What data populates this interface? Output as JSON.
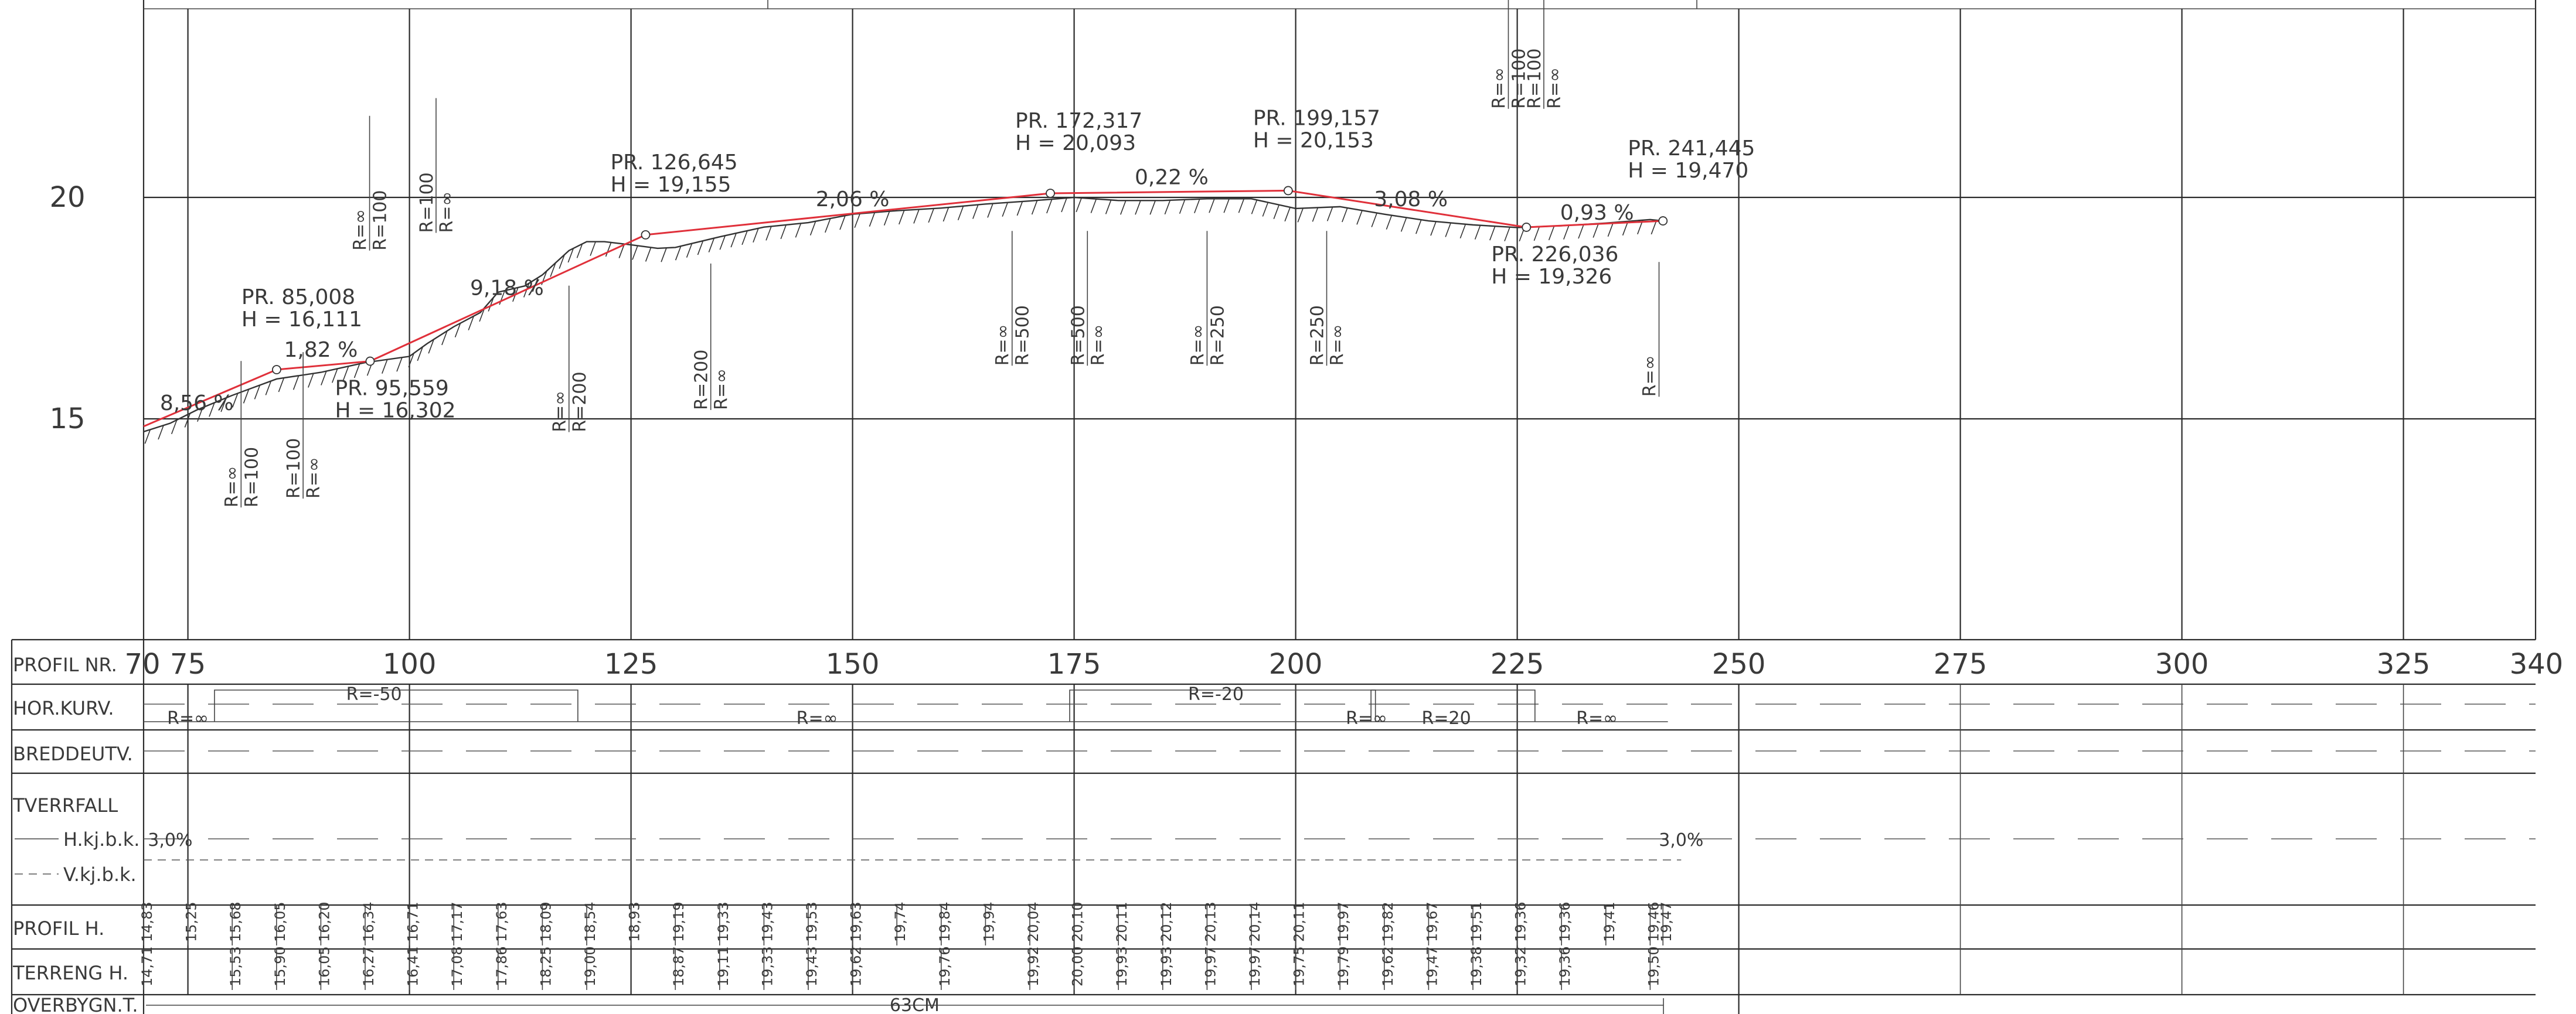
{
  "row_labels": {
    "profil_nr": "PROFIL NR.",
    "hor_kurv": "HOR.KURV.",
    "breddeutv": "BREDDEUTV.",
    "tverrfall": "TVERRFALL",
    "hkjbk": "H.kj.b.k.",
    "vkjbk": "V.kj.b.k.",
    "profil_h": "PROFIL H.",
    "terreng_h": "TERRENG H.",
    "overbygn": "OVERBYGN.T."
  },
  "y_ticks": [
    {
      "label": "20",
      "value": 20
    },
    {
      "label": "15",
      "value": 15
    }
  ],
  "x_ticks": [
    {
      "label": "70",
      "value": 70
    },
    {
      "label": "75",
      "value": 75
    },
    {
      "label": "100",
      "value": 100
    },
    {
      "label": "125",
      "value": 125
    },
    {
      "label": "150",
      "value": 150
    },
    {
      "label": "175",
      "value": 175
    },
    {
      "label": "200",
      "value": 200
    },
    {
      "label": "225",
      "value": 225
    },
    {
      "label": "250",
      "value": 250
    },
    {
      "label": "275",
      "value": 275
    },
    {
      "label": "300",
      "value": 300
    },
    {
      "label": "325",
      "value": 325
    },
    {
      "label": "340",
      "value": 340
    }
  ],
  "vertical_points": [
    {
      "station": 85.008,
      "height": 16.111,
      "pr": "PR. 85,008",
      "h": "H = 16,111",
      "side": "above"
    },
    {
      "station": 95.559,
      "height": 16.302,
      "pr": "PR. 95,559",
      "h": "H = 16,302",
      "side": "below"
    },
    {
      "station": 126.645,
      "height": 19.155,
      "pr": "PR. 126,645",
      "h": "H = 19,155",
      "side": "above"
    },
    {
      "station": 172.317,
      "height": 20.093,
      "pr": "PR. 172,317",
      "h": "H = 20,093",
      "side": "above"
    },
    {
      "station": 199.157,
      "height": 20.153,
      "pr": "PR. 199,157",
      "h": "H = 20,153",
      "side": "above"
    },
    {
      "station": 226.036,
      "height": 19.326,
      "pr": "PR. 226,036",
      "h": "H = 19,326",
      "side": "below"
    },
    {
      "station": 241.445,
      "height": 19.47,
      "pr": "PR. 241,445",
      "h": "H = 19,470",
      "side": "above"
    }
  ],
  "profile_start": {
    "station": 70,
    "height": 14.83
  },
  "grades": [
    {
      "text": "8,56 %",
      "station": 76,
      "height": 15.2
    },
    {
      "text": "1,82 %",
      "station": 90,
      "height": 16.4
    },
    {
      "text": "9,18 %",
      "station": 111,
      "height": 17.8
    },
    {
      "text": "2,06 %",
      "station": 150,
      "height": 19.8
    },
    {
      "text": "0,22 %",
      "station": 186,
      "height": 20.3
    },
    {
      "text": "3,08 %",
      "station": 213,
      "height": 19.8
    },
    {
      "text": "0,93 %",
      "station": 234,
      "height": 19.5
    }
  ],
  "curve_annotations": [
    {
      "station": 81,
      "lines": [
        "R=∞",
        "R=100"
      ],
      "height": 13.0
    },
    {
      "station": 88,
      "lines": [
        "R=100",
        "R=∞"
      ],
      "height": 13.2
    },
    {
      "station": 95.5,
      "lines": [
        "R=∞",
        "R=100"
      ],
      "height": 18.8
    },
    {
      "station": 103,
      "lines": [
        "R=100",
        "R=∞"
      ],
      "height": 19.2
    },
    {
      "station": 118,
      "lines": [
        "R=∞",
        "R=200"
      ],
      "height": 14.7
    },
    {
      "station": 134,
      "lines": [
        "R=200",
        "R=∞"
      ],
      "height": 15.2
    },
    {
      "station": 168,
      "lines": [
        "R=∞",
        "R=500"
      ],
      "height": 16.2
    },
    {
      "station": 176.5,
      "lines": [
        "R=500",
        "R=∞"
      ],
      "height": 16.2
    },
    {
      "station": 190,
      "lines": [
        "R=∞",
        "R=250"
      ],
      "height": 16.2
    },
    {
      "station": 203.5,
      "lines": [
        "R=250",
        "R=∞"
      ],
      "height": 16.2
    },
    {
      "station": 224,
      "lines": [
        "R=∞",
        "R=100"
      ],
      "height": 22.0
    },
    {
      "station": 228,
      "lines": [
        "R=100",
        "R=∞"
      ],
      "height": 22.0
    },
    {
      "station": 241,
      "lines": [
        "R=∞"
      ],
      "height": 15.5
    }
  ],
  "hor_kurv": [
    {
      "text": "R=∞",
      "station": 75
    },
    {
      "text": "R=-50",
      "station": 96
    },
    {
      "text": "R=∞",
      "station": 146
    },
    {
      "text": "R=-20",
      "station": 191
    },
    {
      "text": "R=∞",
      "station": 208
    },
    {
      "text": "R=20",
      "station": 217
    },
    {
      "text": "R=∞",
      "station": 234
    }
  ],
  "tverrfall": [
    {
      "text": "3,0%",
      "station": 73
    },
    {
      "text": "3,0%",
      "station": 243.5
    }
  ],
  "profil_h_values": [
    {
      "station": 70,
      "value": "14,83"
    },
    {
      "station": 75,
      "value": "15,25"
    },
    {
      "station": 80,
      "value": "15,68"
    },
    {
      "station": 85,
      "value": "16,05"
    },
    {
      "station": 90,
      "value": "16,20"
    },
    {
      "station": 95,
      "value": "16,34"
    },
    {
      "station": 100,
      "value": "16,71"
    },
    {
      "station": 105,
      "value": "17,17"
    },
    {
      "station": 110,
      "value": "17,63"
    },
    {
      "station": 115,
      "value": "18,09"
    },
    {
      "station": 120,
      "value": "18,54"
    },
    {
      "station": 125,
      "value": "18,93"
    },
    {
      "station": 130,
      "value": "19,19"
    },
    {
      "station": 135,
      "value": "19,33"
    },
    {
      "station": 140,
      "value": "19,43"
    },
    {
      "station": 145,
      "value": "19,53"
    },
    {
      "station": 150,
      "value": "19,63"
    },
    {
      "station": 155,
      "value": "19,74"
    },
    {
      "station": 160,
      "value": "19,84"
    },
    {
      "station": 165,
      "value": "19,94"
    },
    {
      "station": 170,
      "value": "20,04"
    },
    {
      "station": 175,
      "value": "20,10"
    },
    {
      "station": 180,
      "value": "20,11"
    },
    {
      "station": 185,
      "value": "20,12"
    },
    {
      "station": 190,
      "value": "20,13"
    },
    {
      "station": 195,
      "value": "20,14"
    },
    {
      "station": 200,
      "value": "20,11"
    },
    {
      "station": 205,
      "value": "19,97"
    },
    {
      "station": 210,
      "value": "19,82"
    },
    {
      "station": 215,
      "value": "19,67"
    },
    {
      "station": 220,
      "value": "19,51"
    },
    {
      "station": 225,
      "value": "19,36"
    },
    {
      "station": 230,
      "value": "19,36"
    },
    {
      "station": 235,
      "value": "19,41"
    },
    {
      "station": 240,
      "value": "19,46"
    },
    {
      "station": 241.445,
      "value": "19,47"
    }
  ],
  "terreng_h_values": [
    {
      "station": 70,
      "value": "14,71"
    },
    {
      "station": 80,
      "value": "15,53"
    },
    {
      "station": 85,
      "value": "15,90"
    },
    {
      "station": 90,
      "value": "16,05"
    },
    {
      "station": 95,
      "value": "16,27"
    },
    {
      "station": 100,
      "value": "16,41"
    },
    {
      "station": 105,
      "value": "17,08"
    },
    {
      "station": 110,
      "value": "17,86"
    },
    {
      "station": 115,
      "value": "18,25"
    },
    {
      "station": 120,
      "value": "19,00"
    },
    {
      "station": 130,
      "value": "18,87"
    },
    {
      "station": 135,
      "value": "19,11"
    },
    {
      "station": 140,
      "value": "19,33"
    },
    {
      "station": 145,
      "value": "19,43"
    },
    {
      "station": 150,
      "value": "19,62"
    },
    {
      "station": 160,
      "value": "19,76"
    },
    {
      "station": 170,
      "value": "19,92"
    },
    {
      "station": 175,
      "value": "20,00"
    },
    {
      "station": 180,
      "value": "19,93"
    },
    {
      "station": 185,
      "value": "19,93"
    },
    {
      "station": 190,
      "value": "19,97"
    },
    {
      "station": 195,
      "value": "19,97"
    },
    {
      "station": 200,
      "value": "19,75"
    },
    {
      "station": 205,
      "value": "19,79"
    },
    {
      "station": 210,
      "value": "19,62"
    },
    {
      "station": 215,
      "value": "19,47"
    },
    {
      "station": 220,
      "value": "19,38"
    },
    {
      "station": 225,
      "value": "19,32"
    },
    {
      "station": 230,
      "value": "19,36"
    },
    {
      "station": 240,
      "value": "19,50"
    }
  ],
  "overbygning": {
    "text": "63CM",
    "station": 157
  },
  "terrain_points": [
    [
      70,
      14.71
    ],
    [
      73,
      14.9
    ],
    [
      76,
      15.2
    ],
    [
      80,
      15.53
    ],
    [
      85,
      15.9
    ],
    [
      90,
      16.05
    ],
    [
      95,
      16.27
    ],
    [
      100,
      16.41
    ],
    [
      102,
      16.7
    ],
    [
      105,
      17.08
    ],
    [
      108,
      17.4
    ],
    [
      110,
      17.86
    ],
    [
      113,
      18.0
    ],
    [
      115,
      18.25
    ],
    [
      118,
      18.8
    ],
    [
      120,
      19.0
    ],
    [
      122,
      19.0
    ],
    [
      125,
      18.93
    ],
    [
      128,
      18.85
    ],
    [
      130,
      18.87
    ],
    [
      135,
      19.11
    ],
    [
      140,
      19.33
    ],
    [
      145,
      19.43
    ],
    [
      150,
      19.62
    ],
    [
      155,
      19.7
    ],
    [
      160,
      19.76
    ],
    [
      165,
      19.85
    ],
    [
      170,
      19.92
    ],
    [
      175,
      20.0
    ],
    [
      180,
      19.93
    ],
    [
      185,
      19.93
    ],
    [
      190,
      19.97
    ],
    [
      195,
      19.97
    ],
    [
      200,
      19.75
    ],
    [
      205,
      19.79
    ],
    [
      210,
      19.62
    ],
    [
      215,
      19.47
    ],
    [
      220,
      19.38
    ],
    [
      225,
      19.32
    ],
    [
      230,
      19.36
    ],
    [
      235,
      19.42
    ],
    [
      240,
      19.5
    ],
    [
      241.445,
      19.47
    ]
  ],
  "colors": {
    "profile_line": "#e0303a",
    "grid": "#2a2a2a",
    "text": "#3a3a3a"
  }
}
